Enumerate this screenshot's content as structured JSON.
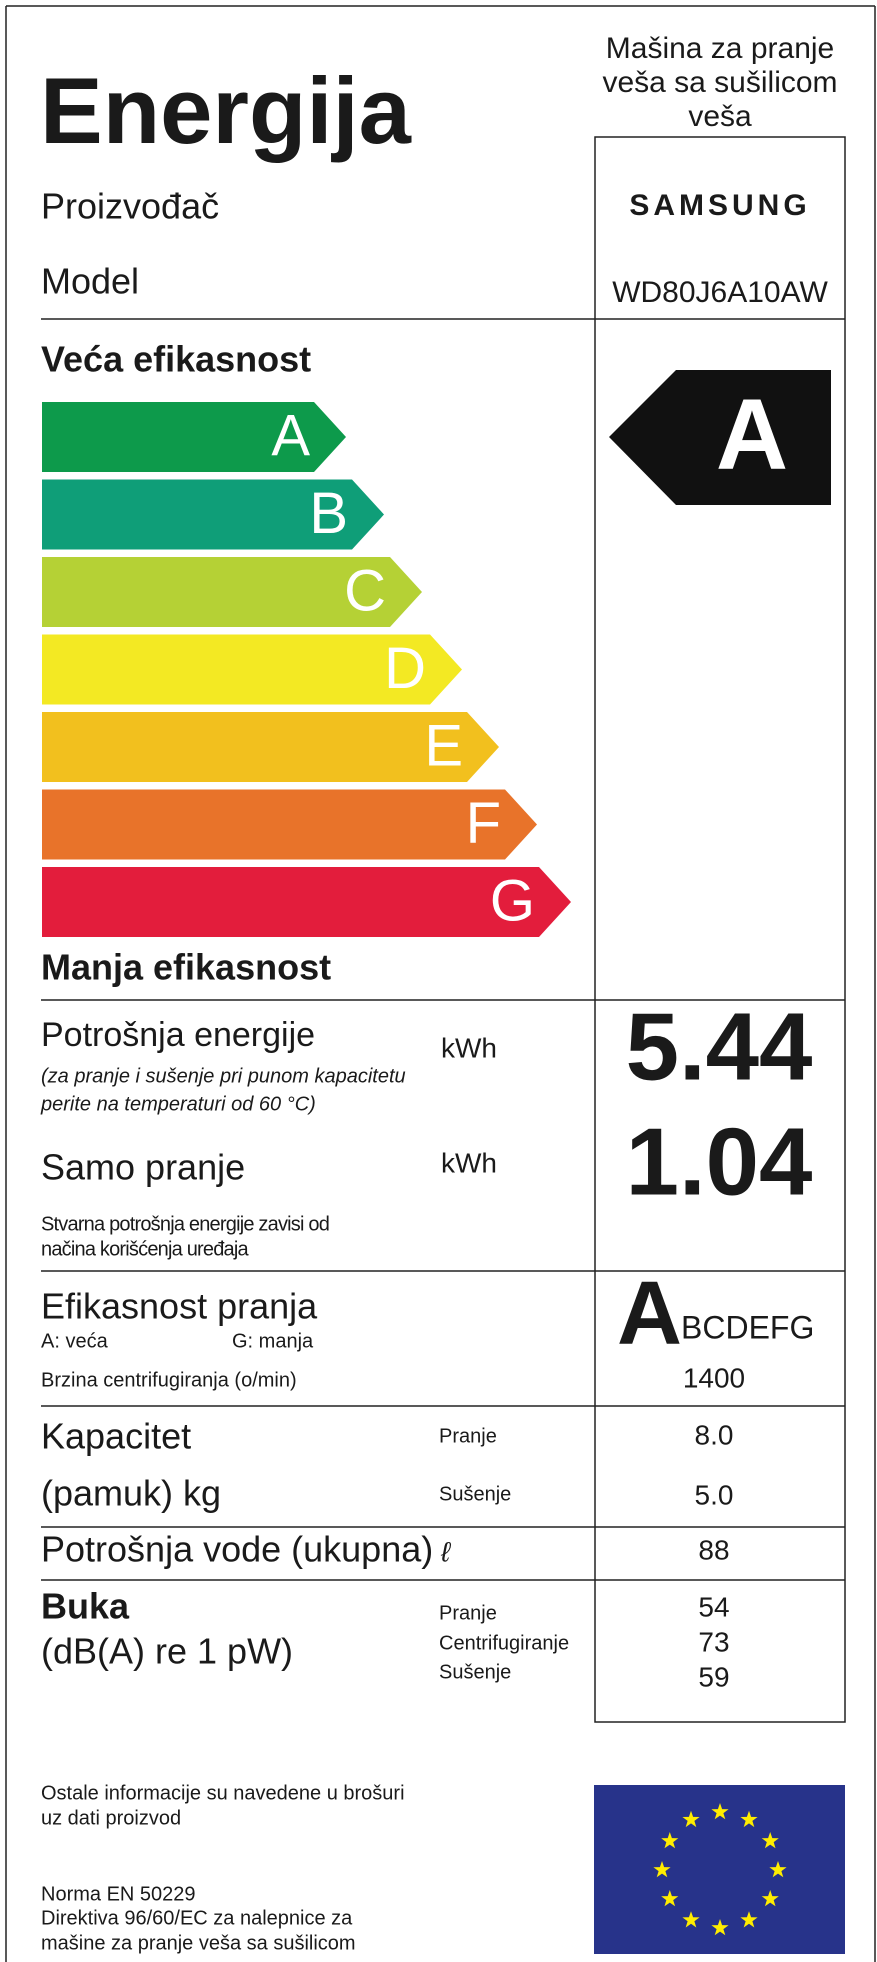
{
  "header": {
    "title": "Energija",
    "product_type": [
      "Mašina za pranje",
      "veša sa sušilicom",
      "veša"
    ],
    "manufacturer_label": "Proizvođač",
    "manufacturer": "SAMSUNG",
    "model_label": "Model",
    "model": "WD80J6A10AW"
  },
  "scale": {
    "top_label": "Veća efikasnost",
    "classes": [
      "A",
      "B",
      "C",
      "D",
      "E",
      "F",
      "G"
    ],
    "bottom_label": "Manja efikasnost",
    "rating": "A"
  },
  "energy": {
    "label": "Potrošnja energije",
    "note": [
      "(za pranje i sušenje pri punom kapacitetu",
      "perite na temperaturi od 60 °C)"
    ],
    "unit": "kWh",
    "value": "5.44"
  },
  "wash_only": {
    "label": "Samo pranje",
    "unit": "kWh",
    "value": "1.04",
    "note": [
      "Stvarna potrošnja energije zavisi od",
      "načina korišćenja uređaja"
    ]
  },
  "wash_efficiency": {
    "label": "Efikasnost pranja",
    "best": "A: veća",
    "worst": "G: manja",
    "class": "A",
    "other_classes": "BCDEFG",
    "spin_label": "Brzina centrifugiranja (o/min)",
    "spin": "1400"
  },
  "capacity": {
    "label": [
      "Kapacitet",
      "(pamuk) kg"
    ],
    "wash_label": "Pranje",
    "wash": "8.0",
    "dry_label": "Sušenje",
    "dry": "5.0"
  },
  "water": {
    "label": "Potrošnja vode (ukupna)",
    "unit": "ℓ",
    "value": "88"
  },
  "noise": {
    "label": "Buka",
    "unit": "(dB(A) re 1 pW)",
    "items": [
      {
        "label": "Pranje",
        "value": "54"
      },
      {
        "label": "Centrifugiranje",
        "value": "73"
      },
      {
        "label": "Sušenje",
        "value": "59"
      }
    ]
  },
  "footer": {
    "info": [
      "Ostale informacije su navedene u brošuri",
      "uz dati proizvod"
    ],
    "norm": [
      "Norma EN 50229",
      "Direktiva 96/60/EC za nalepnice za",
      "mašine za pranje veša sa sušilicom"
    ]
  }
}
